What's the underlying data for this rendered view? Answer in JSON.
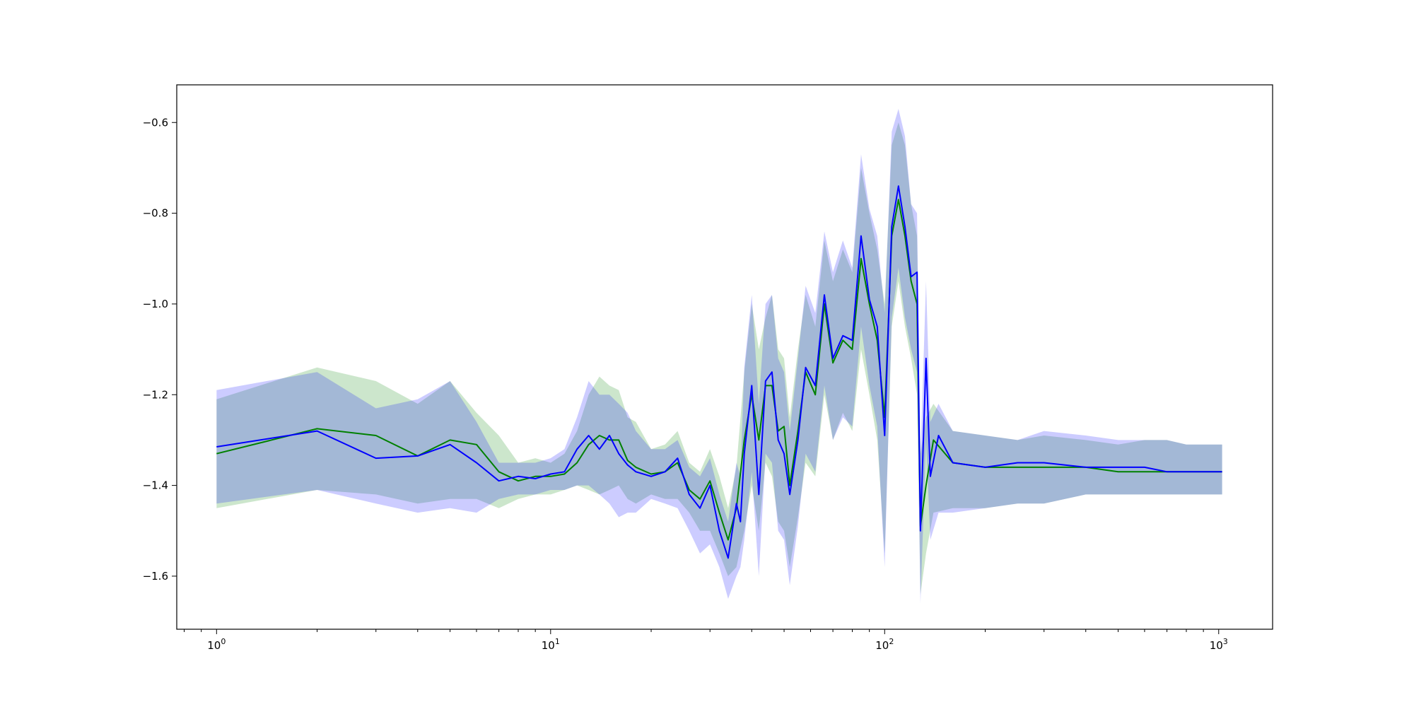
{
  "chart_data": {
    "type": "line",
    "title": "",
    "xlabel": "",
    "ylabel": "",
    "xscale": "log",
    "xlim": [
      0.76,
      1450
    ],
    "ylim": [
      -1.717,
      -0.517
    ],
    "grid": false,
    "legend": "none",
    "x_ticks": [
      {
        "value": 1,
        "base": "10",
        "exp": "0"
      },
      {
        "value": 10,
        "base": "10",
        "exp": "1"
      },
      {
        "value": 100,
        "base": "10",
        "exp": "2"
      },
      {
        "value": 1000,
        "base": "10",
        "exp": "3"
      }
    ],
    "y_ticks": [
      {
        "value": -0.6,
        "label": "−0.6"
      },
      {
        "value": -0.8,
        "label": "−0.8"
      },
      {
        "value": -1.0,
        "label": "−1.0"
      },
      {
        "value": -1.2,
        "label": "−1.2"
      },
      {
        "value": -1.4,
        "label": "−1.4"
      },
      {
        "value": -1.6,
        "label": "−1.6"
      }
    ],
    "series": [
      {
        "color": "#008000",
        "band_color": "#008000",
        "band_opacity": 0.2,
        "points": [
          [
            1,
            -1.33,
            -1.45,
            -1.21
          ],
          [
            2,
            -1.275,
            -1.41,
            -1.14
          ],
          [
            3,
            -1.29,
            -1.42,
            -1.17
          ],
          [
            4,
            -1.335,
            -1.44,
            -1.22
          ],
          [
            5,
            -1.3,
            -1.43,
            -1.17
          ],
          [
            6,
            -1.31,
            -1.43,
            -1.24
          ],
          [
            7,
            -1.37,
            -1.45,
            -1.29
          ],
          [
            8,
            -1.39,
            -1.43,
            -1.35
          ],
          [
            9,
            -1.38,
            -1.42,
            -1.34
          ],
          [
            10,
            -1.38,
            -1.42,
            -1.35
          ],
          [
            11,
            -1.375,
            -1.41,
            -1.33
          ],
          [
            12,
            -1.35,
            -1.4,
            -1.28
          ],
          [
            13,
            -1.31,
            -1.41,
            -1.2
          ],
          [
            14,
            -1.29,
            -1.42,
            -1.16
          ],
          [
            15,
            -1.3,
            -1.41,
            -1.18
          ],
          [
            16,
            -1.3,
            -1.4,
            -1.19
          ],
          [
            17,
            -1.345,
            -1.43,
            -1.25
          ],
          [
            18,
            -1.36,
            -1.44,
            -1.26
          ],
          [
            20,
            -1.375,
            -1.42,
            -1.32
          ],
          [
            22,
            -1.37,
            -1.43,
            -1.31
          ],
          [
            24,
            -1.35,
            -1.43,
            -1.28
          ],
          [
            26,
            -1.41,
            -1.46,
            -1.35
          ],
          [
            28,
            -1.43,
            -1.5,
            -1.37
          ],
          [
            30,
            -1.39,
            -1.5,
            -1.32
          ],
          [
            32,
            -1.46,
            -1.55,
            -1.38
          ],
          [
            34,
            -1.52,
            -1.6,
            -1.45
          ],
          [
            36,
            -1.45,
            -1.58,
            -1.36
          ],
          [
            38,
            -1.3,
            -1.5,
            -1.15
          ],
          [
            40,
            -1.2,
            -1.4,
            -1.0
          ],
          [
            42,
            -1.3,
            -1.5,
            -1.1
          ],
          [
            44,
            -1.18,
            -1.35,
            -1.03
          ],
          [
            46,
            -1.18,
            -1.38,
            -0.98
          ],
          [
            48,
            -1.28,
            -1.48,
            -1.1
          ],
          [
            50,
            -1.27,
            -1.5,
            -1.12
          ],
          [
            52,
            -1.4,
            -1.58,
            -1.25
          ],
          [
            55,
            -1.28,
            -1.47,
            -1.1
          ],
          [
            58,
            -1.15,
            -1.35,
            -0.98
          ],
          [
            62,
            -1.2,
            -1.38,
            -1.05
          ],
          [
            66,
            -1.0,
            -1.2,
            -0.86
          ],
          [
            70,
            -1.13,
            -1.3,
            -0.95
          ],
          [
            75,
            -1.08,
            -1.24,
            -0.88
          ],
          [
            80,
            -1.1,
            -1.28,
            -0.93
          ],
          [
            85,
            -0.9,
            -1.1,
            -0.7
          ],
          [
            90,
            -1.0,
            -1.2,
            -0.8
          ],
          [
            95,
            -1.08,
            -1.3,
            -0.88
          ],
          [
            100,
            -1.25,
            -1.55,
            -1.0
          ],
          [
            105,
            -0.85,
            -1.05,
            -0.65
          ],
          [
            110,
            -0.77,
            -0.95,
            -0.6
          ],
          [
            115,
            -0.85,
            -1.05,
            -0.65
          ],
          [
            120,
            -0.95,
            -1.12,
            -0.78
          ],
          [
            125,
            -1.0,
            -1.2,
            -0.85
          ],
          [
            128,
            -1.49,
            -1.64,
            -1.33
          ],
          [
            133,
            -1.4,
            -1.55,
            -1.25
          ],
          [
            140,
            -1.3,
            -1.46,
            -1.22
          ],
          [
            160,
            -1.35,
            -1.45,
            -1.28
          ],
          [
            200,
            -1.36,
            -1.45,
            -1.29
          ],
          [
            250,
            -1.36,
            -1.44,
            -1.3
          ],
          [
            300,
            -1.36,
            -1.44,
            -1.29
          ],
          [
            400,
            -1.36,
            -1.42,
            -1.3
          ],
          [
            500,
            -1.37,
            -1.42,
            -1.31
          ],
          [
            600,
            -1.37,
            -1.42,
            -1.3
          ],
          [
            700,
            -1.37,
            -1.42,
            -1.3
          ],
          [
            800,
            -1.37,
            -1.42,
            -1.31
          ],
          [
            1024,
            -1.37,
            -1.42,
            -1.31
          ]
        ]
      },
      {
        "color": "#0000ff",
        "band_color": "#0000ff",
        "band_opacity": 0.2,
        "points": [
          [
            1,
            -1.315,
            -1.44,
            -1.19
          ],
          [
            2,
            -1.28,
            -1.41,
            -1.15
          ],
          [
            3,
            -1.34,
            -1.44,
            -1.23
          ],
          [
            4,
            -1.335,
            -1.46,
            -1.21
          ],
          [
            5,
            -1.31,
            -1.45,
            -1.17
          ],
          [
            6,
            -1.35,
            -1.46,
            -1.26
          ],
          [
            7,
            -1.39,
            -1.43,
            -1.35
          ],
          [
            8,
            -1.38,
            -1.42,
            -1.35
          ],
          [
            9,
            -1.385,
            -1.42,
            -1.35
          ],
          [
            10,
            -1.375,
            -1.41,
            -1.34
          ],
          [
            11,
            -1.37,
            -1.41,
            -1.32
          ],
          [
            12,
            -1.32,
            -1.4,
            -1.25
          ],
          [
            13,
            -1.29,
            -1.4,
            -1.17
          ],
          [
            14,
            -1.32,
            -1.42,
            -1.2
          ],
          [
            15,
            -1.29,
            -1.44,
            -1.2
          ],
          [
            16,
            -1.33,
            -1.47,
            -1.22
          ],
          [
            17,
            -1.355,
            -1.46,
            -1.24
          ],
          [
            18,
            -1.37,
            -1.46,
            -1.28
          ],
          [
            20,
            -1.38,
            -1.43,
            -1.32
          ],
          [
            22,
            -1.37,
            -1.44,
            -1.32
          ],
          [
            24,
            -1.34,
            -1.45,
            -1.3
          ],
          [
            26,
            -1.42,
            -1.5,
            -1.36
          ],
          [
            28,
            -1.45,
            -1.55,
            -1.38
          ],
          [
            30,
            -1.4,
            -1.53,
            -1.34
          ],
          [
            32,
            -1.5,
            -1.58,
            -1.42
          ],
          [
            34,
            -1.56,
            -1.65,
            -1.48
          ],
          [
            36,
            -1.44,
            -1.6,
            -1.35
          ],
          [
            37,
            -1.48,
            -1.58,
            -1.38
          ],
          [
            38,
            -1.33,
            -1.52,
            -1.14
          ],
          [
            40,
            -1.18,
            -1.37,
            -0.98
          ],
          [
            42,
            -1.42,
            -1.6,
            -1.22
          ],
          [
            44,
            -1.17,
            -1.33,
            -1.0
          ],
          [
            46,
            -1.15,
            -1.35,
            -0.98
          ],
          [
            48,
            -1.3,
            -1.5,
            -1.12
          ],
          [
            50,
            -1.33,
            -1.52,
            -1.15
          ],
          [
            52,
            -1.42,
            -1.62,
            -1.28
          ],
          [
            55,
            -1.3,
            -1.49,
            -1.12
          ],
          [
            58,
            -1.14,
            -1.33,
            -0.96
          ],
          [
            62,
            -1.18,
            -1.37,
            -1.02
          ],
          [
            66,
            -0.98,
            -1.18,
            -0.84
          ],
          [
            70,
            -1.12,
            -1.3,
            -0.93
          ],
          [
            75,
            -1.07,
            -1.25,
            -0.86
          ],
          [
            80,
            -1.08,
            -1.27,
            -0.92
          ],
          [
            85,
            -0.85,
            -1.05,
            -0.67
          ],
          [
            90,
            -0.99,
            -1.18,
            -0.79
          ],
          [
            95,
            -1.05,
            -1.27,
            -0.85
          ],
          [
            100,
            -1.29,
            -1.58,
            -1.02
          ],
          [
            105,
            -0.83,
            -1.03,
            -0.62
          ],
          [
            110,
            -0.74,
            -0.92,
            -0.57
          ],
          [
            115,
            -0.83,
            -1.03,
            -0.63
          ],
          [
            120,
            -0.94,
            -1.1,
            -0.78
          ],
          [
            125,
            -0.93,
            -1.15,
            -0.8
          ],
          [
            128,
            -1.5,
            -1.66,
            -1.34
          ],
          [
            133,
            -1.12,
            -1.3,
            -0.95
          ],
          [
            137,
            -1.38,
            -1.52,
            -1.26
          ],
          [
            145,
            -1.29,
            -1.46,
            -1.22
          ],
          [
            160,
            -1.35,
            -1.46,
            -1.28
          ],
          [
            200,
            -1.36,
            -1.45,
            -1.29
          ],
          [
            250,
            -1.35,
            -1.44,
            -1.3
          ],
          [
            300,
            -1.35,
            -1.44,
            -1.28
          ],
          [
            400,
            -1.36,
            -1.42,
            -1.29
          ],
          [
            500,
            -1.36,
            -1.42,
            -1.3
          ],
          [
            600,
            -1.36,
            -1.42,
            -1.3
          ],
          [
            700,
            -1.37,
            -1.42,
            -1.3
          ],
          [
            800,
            -1.37,
            -1.42,
            -1.31
          ],
          [
            1024,
            -1.37,
            -1.42,
            -1.31
          ]
        ]
      }
    ]
  }
}
